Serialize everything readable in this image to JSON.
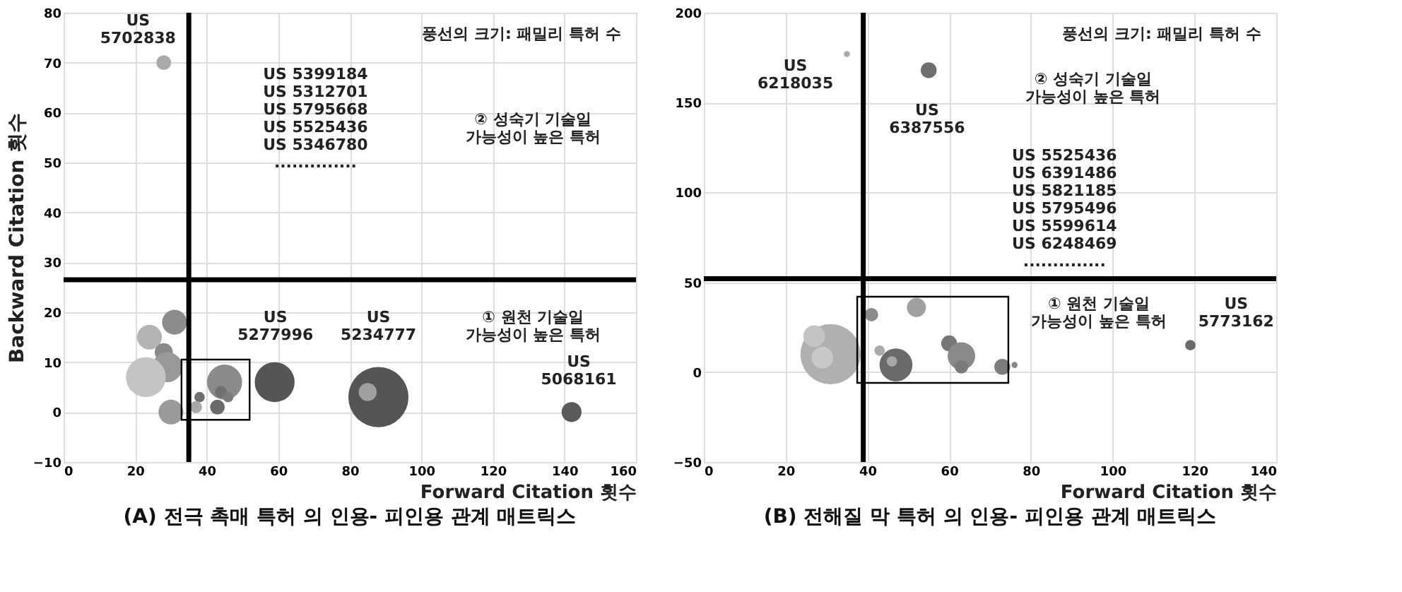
{
  "chart_data": [
    {
      "type": "bubble",
      "title": "(A) 전극 촉매 특허 의 인용- 피인용 관계 매트릭스",
      "xlabel": "Forward Citation 횟수",
      "ylabel": "Backward Citation 횟수",
      "x": [
        28,
        31,
        24,
        28,
        29,
        23,
        30,
        38,
        37,
        45,
        44,
        46,
        43,
        59,
        88,
        85,
        142
      ],
      "values": [
        70,
        18,
        15,
        12,
        9,
        7,
        0,
        3,
        1,
        6,
        4,
        3,
        1,
        6,
        3,
        4,
        0
      ],
      "sizes": [
        0.06,
        0.17,
        0.17,
        0.09,
        0.25,
        0.44,
        0.17,
        0.03,
        0.04,
        0.34,
        0.04,
        0.03,
        0.06,
        0.44,
        1,
        0.09,
        0.11
      ],
      "colors": [
        "#aaaaaa",
        "#8c8c8c",
        "#b4b4b4",
        "#8a8a8a",
        "#999999",
        "#c4c4c4",
        "#9a9a9a",
        "#6e6e6e",
        "#a8a8a8",
        "#8a8a8a",
        "#707070",
        "#7a7a7a",
        "#6a6a6a",
        "#555555",
        "#555555",
        "#a0a0a0",
        "#5a5a5a"
      ],
      "xlim": [
        0,
        160
      ],
      "ylim": [
        -10,
        80
      ],
      "xticks": [
        0,
        20,
        40,
        60,
        80,
        100,
        120,
        140,
        160
      ],
      "yticks": [
        -10,
        0,
        10,
        20,
        30,
        40,
        50,
        60,
        70,
        80
      ],
      "grid": true,
      "marker": "circle",
      "ref_lines": [
        {
          "axis": "x",
          "value": 35
        },
        {
          "axis": "y",
          "value": 26.5
        }
      ],
      "annotations": [
        "US\n5702838",
        "풍선의 크기: 패밀리 특허 수",
        "US 5399184\nUS 5312701\nUS 5795668\nUS 5525436\nUS 5346780\n..............",
        "② 성숙기 기술일\n가능성이 높은 특허",
        "US\n5277996",
        "US\n5234777",
        "① 원천 기술일\n가능성이 높은 특허",
        "US\n5068161"
      ]
    },
    {
      "type": "bubble",
      "title": "(B) 전해질 막 특허 의 인용- 피인용 관계 매트릭스",
      "xlabel": "Forward Citation 횟수",
      "x": [
        35,
        55,
        31,
        27,
        29,
        41,
        52,
        43,
        47,
        46,
        60,
        63,
        63,
        73,
        76,
        119
      ],
      "values": [
        177,
        168,
        10,
        20,
        8,
        32,
        36,
        12,
        4,
        6,
        16,
        9,
        3,
        3,
        4,
        15
      ],
      "sizes": [
        0.01,
        0.07,
        1,
        0.13,
        0.13,
        0.05,
        0.1,
        0.03,
        0.3,
        0.03,
        0.07,
        0.21,
        0.05,
        0.07,
        0.01,
        0.03
      ],
      "colors": [
        "#aaaaaa",
        "#6e6e6e",
        "#b0b0b0",
        "#c4c4c4",
        "#c8c8c8",
        "#8c8c8c",
        "#a0a0a0",
        "#aaaaaa",
        "#6a6a6a",
        "#a8a8a8",
        "#777777",
        "#8a8a8a",
        "#7a7a7a",
        "#7c7c7c",
        "#888888",
        "#6a6a6a"
      ],
      "xlim": [
        0,
        140
      ],
      "ylim": [
        -50,
        200
      ],
      "xticks": [
        0,
        20,
        40,
        60,
        80,
        100,
        120,
        140
      ],
      "yticks": [
        -50,
        0,
        50,
        100,
        150,
        200
      ],
      "grid": true,
      "marker": "circle",
      "ref_lines": [
        {
          "axis": "x",
          "value": 39
        },
        {
          "axis": "y",
          "value": 52
        }
      ],
      "annotations": [
        "US\n6218035",
        "US\n6387556",
        "풍선의 크기: 패밀리 특허 수",
        "② 성숙기 기술일\n가능성이 높은 특허",
        "US 5525436\nUS 6391486\nUS 5821185\nUS 5795496\nUS 5599614\nUS 6248469\n..............",
        "① 원천 기술일\n가능성이 높은 특허",
        "US\n5773162"
      ]
    }
  ]
}
